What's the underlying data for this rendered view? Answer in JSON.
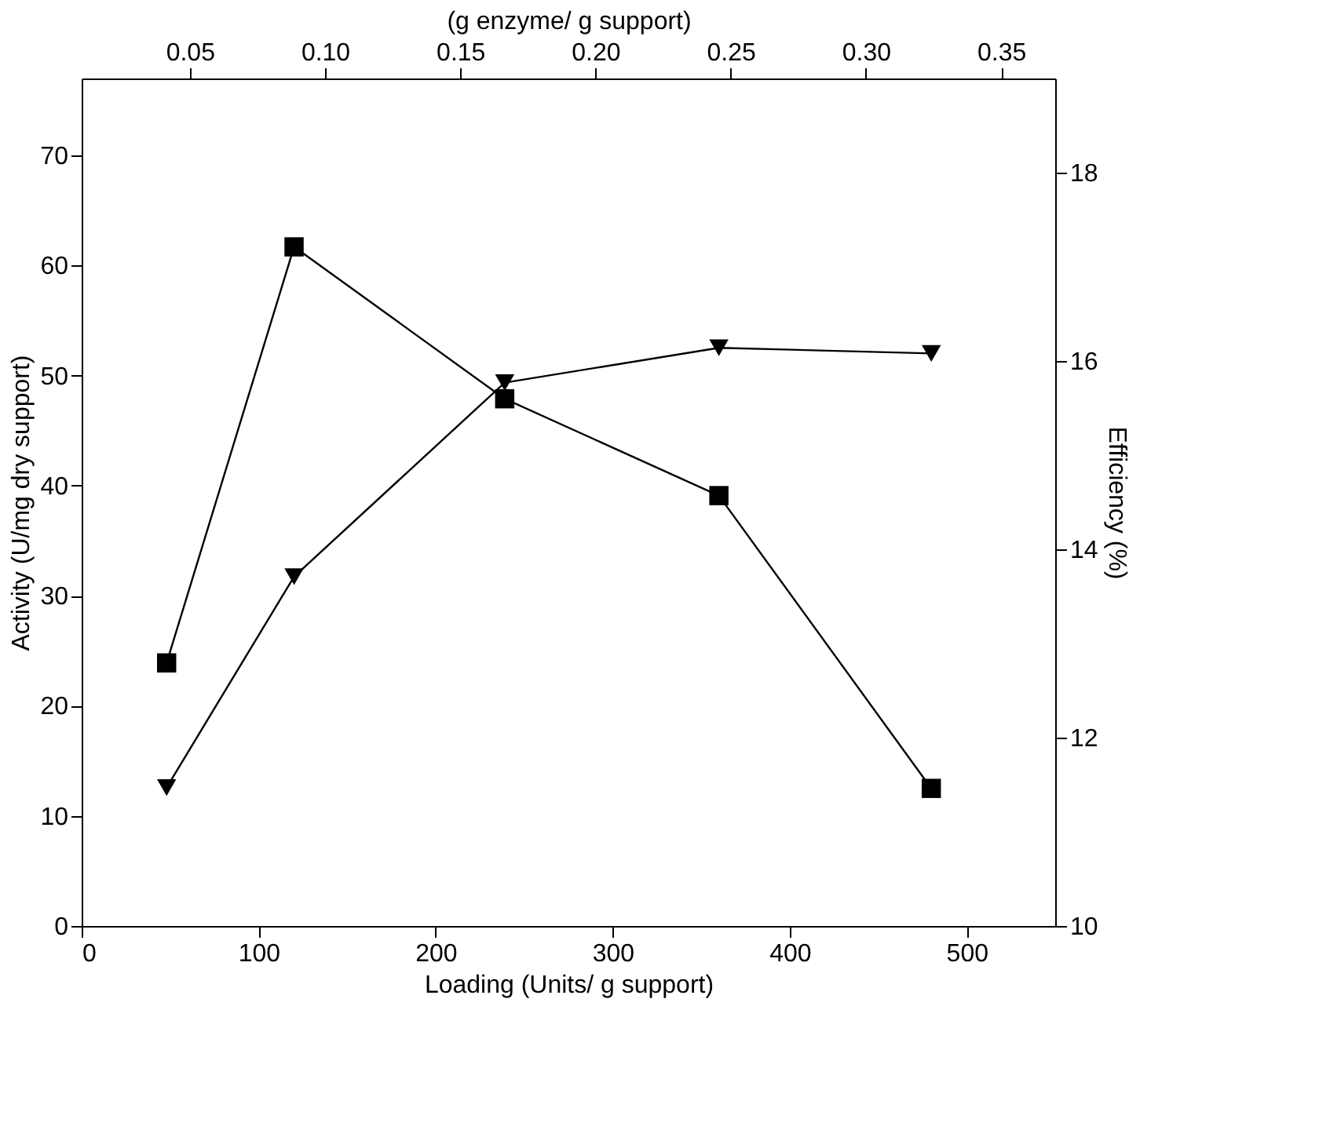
{
  "chart_data": {
    "type": "line",
    "xlabel": "Loading (Units/ g support)",
    "ylabel": "Activity (U/mg dry support)",
    "y2label": "Efficiency (%)",
    "x2label": "(g enzyme/ g support)",
    "x": [
      48,
      120,
      239,
      360,
      480
    ],
    "series": [
      {
        "color": "#000000",
        "marker": "square",
        "axis": "y",
        "values": [
          23.9,
          61.7,
          47.9,
          39.1,
          12.5
        ]
      },
      {
        "color": "#000000",
        "marker": "triangle",
        "axis": "y2",
        "values": [
          11.47,
          13.71,
          15.77,
          16.14,
          16.08
        ]
      }
    ],
    "xlim": [
      0,
      550
    ],
    "xticks": [
      0,
      100,
      200,
      300,
      400,
      500
    ],
    "ylim": [
      0,
      77
    ],
    "yticks": [
      0,
      10,
      20,
      30,
      40,
      50,
      60,
      70
    ],
    "y2lim": [
      10,
      19
    ],
    "y2ticks": [
      10,
      12,
      14,
      16,
      18
    ],
    "x2lim": [
      0.01,
      0.37
    ],
    "x2ticks": [
      {
        "value": 0.05,
        "label": "0.05"
      },
      {
        "value": 0.1,
        "label": "0.10"
      },
      {
        "value": 0.15,
        "label": "0.15"
      },
      {
        "value": 0.2,
        "label": "0.20"
      },
      {
        "value": 0.25,
        "label": "0.25"
      },
      {
        "value": 0.3,
        "label": "0.30"
      },
      {
        "value": 0.35,
        "label": "0.35"
      }
    ],
    "grid": false,
    "line_style": "solid"
  }
}
